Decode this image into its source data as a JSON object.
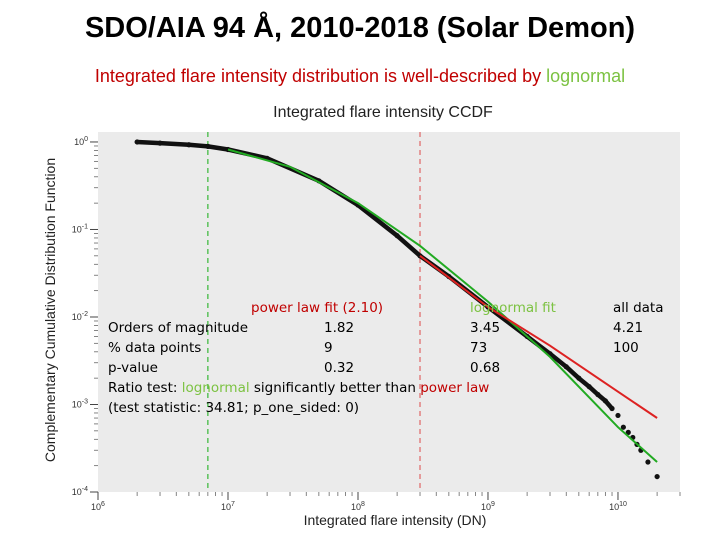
{
  "slide": {
    "title": "SDO/AIA 94 Å, 2010-2018 (Solar Demon)",
    "subtitle_prefix": "Integrated flare intensity distribution is well-described by ",
    "subtitle_highlight": "lognormal"
  },
  "chart_data": {
    "type": "scatter",
    "title": "Integrated flare intensity CCDF",
    "xlabel": "Integrated flare intensity (DN)",
    "ylabel": "Complementary Cumulative Distribution Function",
    "x_scale": "log",
    "y_scale": "log",
    "xlim": [
      1000000.0,
      30000000000.0
    ],
    "ylim": [
      0.0001,
      1.3
    ],
    "x_ticks": [
      {
        "value": 1000000.0,
        "label": "10^6"
      },
      {
        "value": 10000000.0,
        "label": "10^7"
      },
      {
        "value": 100000000.0,
        "label": "10^8"
      },
      {
        "value": 1000000000.0,
        "label": "10^9"
      },
      {
        "value": 10000000000.0,
        "label": "10^10"
      }
    ],
    "y_ticks": [
      {
        "value": 1,
        "label": "10^0"
      },
      {
        "value": 0.1,
        "label": "10^-1"
      },
      {
        "value": 0.01,
        "label": "10^-2"
      },
      {
        "value": 0.001,
        "label": "10^-3"
      },
      {
        "value": 0.0001,
        "label": "10^-4"
      }
    ],
    "series": [
      {
        "name": "all data",
        "type": "scatter",
        "color": "#111111",
        "x": [
          2000000.0,
          3000000.0,
          5000000.0,
          7000000.0,
          10000000.0,
          20000000.0,
          50000000.0,
          100000000.0,
          200000000.0,
          300000000.0,
          500000000.0,
          1000000000.0,
          2000000000.0,
          3000000000.0,
          4000000000.0,
          5000000000.0,
          6000000000.0,
          7000000000.0,
          8000000000.0,
          9000000000.0,
          10000000000.0,
          11000000000.0,
          12000000000.0,
          13000000000.0,
          14000000000.0,
          15000000000.0,
          17000000000.0,
          20000000000.0
        ],
        "y": [
          1.0,
          0.97,
          0.93,
          0.89,
          0.82,
          0.65,
          0.36,
          0.19,
          0.085,
          0.05,
          0.029,
          0.013,
          0.006,
          0.0038,
          0.0027,
          0.002,
          0.0016,
          0.0013,
          0.0011,
          0.0009,
          0.00075,
          0.00055,
          0.00048,
          0.00042,
          0.00035,
          0.0003,
          0.00022,
          0.00015
        ]
      },
      {
        "name": "lognormal fit",
        "type": "line",
        "color": "#22aa22",
        "x": [
          10000000.0,
          30000000.0,
          100000000.0,
          300000000.0,
          1000000000.0,
          3000000000.0,
          10000000000.0,
          20000000000.0
        ],
        "y": [
          0.82,
          0.52,
          0.2,
          0.065,
          0.015,
          0.0035,
          0.00055,
          0.00022
        ]
      },
      {
        "name": "power law fit (2.10)",
        "type": "line",
        "color": "#dd2222",
        "x": [
          300000000.0,
          1000000000.0,
          3000000000.0,
          10000000000.0,
          20000000000.0
        ],
        "y": [
          0.05,
          0.013,
          0.0047,
          0.0014,
          0.0007
        ]
      }
    ],
    "vlines": [
      {
        "x": 7000000.0,
        "color": "#44bb44",
        "style": "dashed"
      },
      {
        "x": 300000000.0,
        "color": "#e07070",
        "style": "dashed"
      }
    ],
    "grid": false,
    "legend": "none"
  },
  "stats": {
    "headers": {
      "power_law": "power law fit (2.10)",
      "lognormal": "lognormal fit",
      "all_data": "all data"
    },
    "rows": [
      {
        "label": "Orders of magnitude",
        "power_law": "1.82",
        "lognormal": "3.45",
        "all_data": "4.21"
      },
      {
        "label": "% data points",
        "power_law": "9",
        "lognormal": "73",
        "all_data": "100"
      },
      {
        "label": "p-value",
        "power_law": "0.32",
        "lognormal": "0.68",
        "all_data": ""
      }
    ],
    "ratio_prefix": "Ratio test: ",
    "ratio_lognormal": "lognormal",
    "ratio_middle": " significantly better than ",
    "ratio_powerlaw": "power law",
    "test_stat": "(test statistic: 34.81; p_one_sided: 0)"
  }
}
